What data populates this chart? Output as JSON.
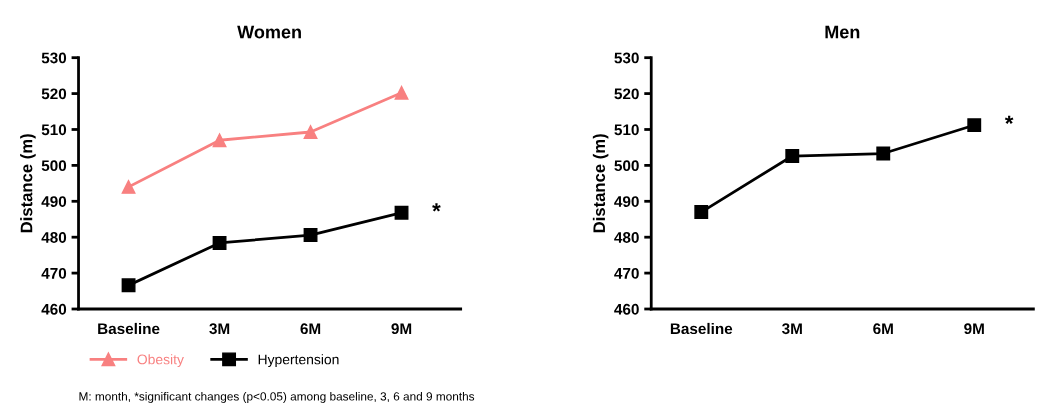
{
  "chart_data": [
    {
      "type": "line",
      "title": "Women",
      "ylabel": "Distance (m)",
      "categories": [
        "Baseline",
        "3M",
        "6M",
        "9M"
      ],
      "series": [
        {
          "name": "Obesity",
          "color": "#f88080",
          "marker": "triangle",
          "values": [
            494,
            507,
            509.3,
            520.2
          ]
        },
        {
          "name": "Hypertension",
          "color": "#000000",
          "marker": "square",
          "values": [
            466.6,
            478.4,
            480.6,
            486.8
          ]
        }
      ],
      "ylim": [
        460,
        530
      ],
      "yticks": [
        460,
        470,
        480,
        490,
        500,
        510,
        520,
        530
      ],
      "legend": "bottom",
      "grid": false,
      "annotations": [
        {
          "text": "*",
          "x": "9M",
          "y": 486.8
        },
        "M: month, *significant changes (p<0.05) among baseline, 3, 6 and 9 months"
      ]
    },
    {
      "type": "line",
      "title": "Men",
      "ylabel": "Distance (m)",
      "categories": [
        "Baseline",
        "3M",
        "6M",
        "9M"
      ],
      "series": [
        {
          "color": "#000000",
          "marker": "square",
          "values": [
            487,
            502.6,
            503.3,
            511.2
          ]
        }
      ],
      "ylim": [
        460,
        530
      ],
      "yticks": [
        460,
        470,
        480,
        490,
        500,
        510,
        520,
        530
      ],
      "legend": false,
      "grid": false,
      "annotations": [
        {
          "text": "*",
          "x": "9M",
          "y": 511.2
        }
      ]
    }
  ]
}
